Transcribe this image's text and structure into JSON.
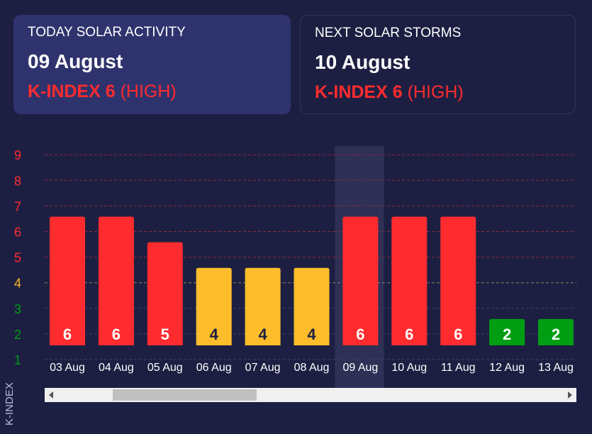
{
  "today": {
    "title": "TODAY SOLAR ACTIVITY",
    "date": "09 August",
    "k_label": "K-INDEX 6",
    "level": "(HIGH)"
  },
  "next": {
    "title": "NEXT SOLAR STORMS",
    "date": "10 August",
    "k_label": "K-INDEX 6",
    "level": "(HIGH)"
  },
  "colors": {
    "high": "#ff2b2e",
    "medium": "#fdbd2b",
    "low": "#009e13",
    "highlight": "#2e3055"
  },
  "chart_data": {
    "type": "bar",
    "title": "",
    "xlabel": "",
    "ylabel": "K-INDEX",
    "ylim": [
      1,
      9
    ],
    "yticks": [
      1,
      2,
      3,
      4,
      5,
      6,
      7,
      8,
      9
    ],
    "categories": [
      "03 Aug",
      "04 Aug",
      "05 Aug",
      "06 Aug",
      "07 Aug",
      "08 Aug",
      "09 Aug",
      "10 Aug",
      "11 Aug",
      "12 Aug",
      "13 Aug"
    ],
    "values": [
      6,
      6,
      5,
      4,
      4,
      4,
      6,
      6,
      6,
      2,
      2
    ],
    "highlighted": "09 Aug",
    "grid": true,
    "scroll_position": 0.13
  }
}
